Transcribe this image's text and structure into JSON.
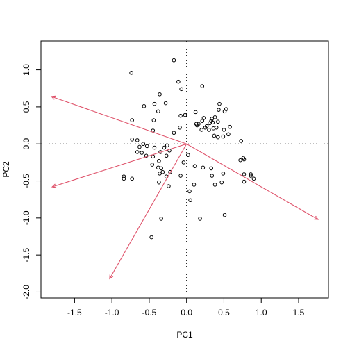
{
  "chart_data": {
    "type": "scatter",
    "title": "",
    "xlabel": "PC1",
    "ylabel": "PC2",
    "xlim": [
      -1.95,
      1.9
    ],
    "ylim": [
      -2.08,
      1.39
    ],
    "x_ticks": [
      -1.5,
      -1.0,
      -0.5,
      0.0,
      0.5,
      1.0,
      1.5
    ],
    "x_tick_labels": [
      "-1.5",
      "-1.0",
      "-0.5",
      "0.0",
      "0.5",
      "1.0",
      "1.5"
    ],
    "y_ticks": [
      -2.0,
      -1.5,
      -1.0,
      -0.5,
      0.0,
      0.5,
      1.0
    ],
    "y_tick_labels": [
      "-2.0",
      "-1.5",
      "-1.0",
      "-0.5",
      "0.0",
      "0.5",
      "1.0"
    ],
    "reference_lines": {
      "x": 0,
      "y": 0,
      "style": "dotted"
    },
    "loadings_color": "#df536b",
    "point_color": "#000000",
    "points": [
      {
        "x": -0.74,
        "y": 0.96
      },
      {
        "x": -0.36,
        "y": 0.67
      },
      {
        "x": -0.28,
        "y": 0.55
      },
      {
        "x": -0.57,
        "y": 0.51
      },
      {
        "x": -0.43,
        "y": 0.54
      },
      {
        "x": -0.38,
        "y": 0.44
      },
      {
        "x": -0.73,
        "y": 0.32
      },
      {
        "x": -0.44,
        "y": 0.32
      },
      {
        "x": -0.45,
        "y": 0.18
      },
      {
        "x": -0.17,
        "y": 0.15
      },
      {
        "x": -0.09,
        "y": 0.22
      },
      {
        "x": -0.08,
        "y": 0.38
      },
      {
        "x": -0.02,
        "y": 0.39
      },
      {
        "x": -0.17,
        "y": 1.13
      },
      {
        "x": -0.11,
        "y": 0.84
      },
      {
        "x": -0.07,
        "y": 0.74
      },
      {
        "x": 0.12,
        "y": 0.43
      },
      {
        "x": 0.21,
        "y": 0.78
      },
      {
        "x": -0.73,
        "y": 0.06
      },
      {
        "x": -0.66,
        "y": 0.05
      },
      {
        "x": -0.58,
        "y": 0.0
      },
      {
        "x": -0.63,
        "y": -0.04
      },
      {
        "x": -0.66,
        "y": -0.11
      },
      {
        "x": -0.6,
        "y": -0.12
      },
      {
        "x": -0.53,
        "y": -0.03
      },
      {
        "x": -0.43,
        "y": -0.05
      },
      {
        "x": -0.35,
        "y": -0.11
      },
      {
        "x": -0.3,
        "y": -0.05
      },
      {
        "x": -0.26,
        "y": -0.02
      },
      {
        "x": -0.23,
        "y": -0.09
      },
      {
        "x": -0.27,
        "y": -0.16
      },
      {
        "x": -0.37,
        "y": -0.23
      },
      {
        "x": -0.45,
        "y": -0.17
      },
      {
        "x": -0.54,
        "y": -0.16
      },
      {
        "x": -0.46,
        "y": -0.28
      },
      {
        "x": -0.38,
        "y": -0.32
      },
      {
        "x": -0.34,
        "y": -0.33
      },
      {
        "x": -0.32,
        "y": -0.38
      },
      {
        "x": -0.36,
        "y": -0.4
      },
      {
        "x": -0.27,
        "y": -0.44
      },
      {
        "x": -0.22,
        "y": -0.38
      },
      {
        "x": -0.37,
        "y": -0.52
      },
      {
        "x": -0.84,
        "y": -0.44
      },
      {
        "x": -0.84,
        "y": -0.47
      },
      {
        "x": -0.73,
        "y": -0.47
      },
      {
        "x": -0.34,
        "y": -1.01
      },
      {
        "x": -0.47,
        "y": -1.26
      },
      {
        "x": -0.24,
        "y": -0.57
      },
      {
        "x": -0.08,
        "y": -0.43
      },
      {
        "x": -0.04,
        "y": -0.25
      },
      {
        "x": 0.02,
        "y": -0.15
      },
      {
        "x": 0.04,
        "y": -0.64
      },
      {
        "x": 0.05,
        "y": -0.76
      },
      {
        "x": 0.11,
        "y": -0.3
      },
      {
        "x": 0.1,
        "y": -0.55
      },
      {
        "x": 0.18,
        "y": -1.01
      },
      {
        "x": 0.22,
        "y": -0.32
      },
      {
        "x": 0.33,
        "y": -0.33
      },
      {
        "x": 0.34,
        "y": -0.43
      },
      {
        "x": 0.38,
        "y": -0.55
      },
      {
        "x": 0.47,
        "y": -0.52
      },
      {
        "x": 0.49,
        "y": -0.4
      },
      {
        "x": 0.51,
        "y": -0.96
      },
      {
        "x": 0.13,
        "y": 0.27
      },
      {
        "x": 0.14,
        "y": 0.25
      },
      {
        "x": 0.16,
        "y": 0.27
      },
      {
        "x": 0.2,
        "y": 0.19
      },
      {
        "x": 0.21,
        "y": 0.31
      },
      {
        "x": 0.23,
        "y": 0.35
      },
      {
        "x": 0.25,
        "y": 0.22
      },
      {
        "x": 0.27,
        "y": 0.24
      },
      {
        "x": 0.3,
        "y": 0.19
      },
      {
        "x": 0.31,
        "y": 0.28
      },
      {
        "x": 0.33,
        "y": 0.31
      },
      {
        "x": 0.34,
        "y": 0.34
      },
      {
        "x": 0.35,
        "y": 0.29
      },
      {
        "x": 0.36,
        "y": 0.21
      },
      {
        "x": 0.38,
        "y": 0.36
      },
      {
        "x": 0.4,
        "y": 0.22
      },
      {
        "x": 0.42,
        "y": 0.3
      },
      {
        "x": 0.43,
        "y": 0.46
      },
      {
        "x": 0.44,
        "y": 0.54
      },
      {
        "x": 0.37,
        "y": 0.11
      },
      {
        "x": 0.42,
        "y": 0.09
      },
      {
        "x": 0.49,
        "y": 0.1
      },
      {
        "x": 0.5,
        "y": 0.19
      },
      {
        "x": 0.51,
        "y": 0.44
      },
      {
        "x": 0.53,
        "y": 0.47
      },
      {
        "x": 0.58,
        "y": 0.23
      },
      {
        "x": 0.56,
        "y": 0.13
      },
      {
        "x": 0.73,
        "y": 0.04
      },
      {
        "x": 0.72,
        "y": -0.22
      },
      {
        "x": 0.76,
        "y": -0.19
      },
      {
        "x": 0.77,
        "y": -0.21
      },
      {
        "x": 0.77,
        "y": -0.41
      },
      {
        "x": 0.77,
        "y": -0.51
      },
      {
        "x": 0.86,
        "y": -0.41
      },
      {
        "x": 0.86,
        "y": -0.43
      },
      {
        "x": 0.9,
        "y": -0.47
      }
    ],
    "loadings": [
      {
        "x": -1.81,
        "y": 0.64
      },
      {
        "x": -1.8,
        "y": -0.58
      },
      {
        "x": -1.03,
        "y": -1.82
      },
      {
        "x": 1.76,
        "y": -1.02
      }
    ]
  }
}
